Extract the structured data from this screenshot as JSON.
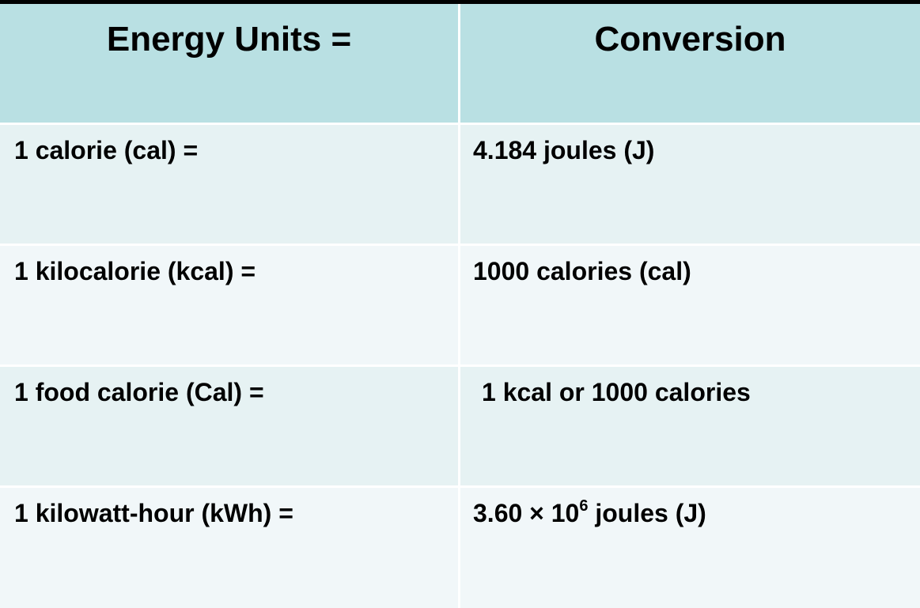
{
  "table": {
    "header": [
      "Energy Units =",
      "Conversion"
    ],
    "rows": [
      [
        "1 calorie (cal) =",
        "4.184 joules (J)"
      ],
      [
        "1 kilocalorie (kcal) =",
        "1000 calories (cal)"
      ],
      [
        "1 food calorie (Cal) =",
        "1 kcal or 1000 calories"
      ],
      [
        "1 kilowatt-hour (kWh) =",
        {
          "base": "3.60 × 10",
          "exponent": "6",
          "unit": " joules (J)"
        }
      ]
    ]
  }
}
